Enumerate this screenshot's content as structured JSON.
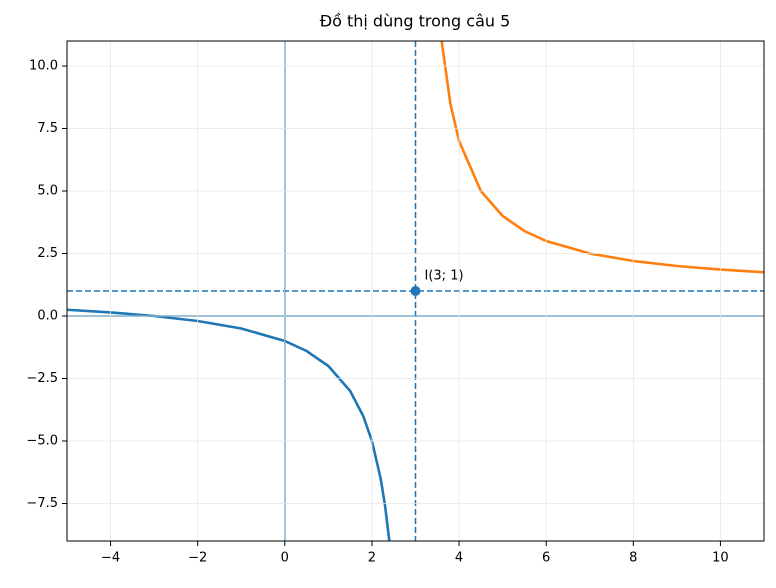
{
  "chart_data": {
    "type": "line",
    "title": "Đồ thị dùng trong câu 5",
    "xlim": [
      -5,
      11
    ],
    "ylim": [
      -9,
      11
    ],
    "xticks": [
      {
        "value": -4,
        "label": "−4"
      },
      {
        "value": -2,
        "label": "−2"
      },
      0,
      2,
      4,
      6,
      8,
      10
    ],
    "yticks": [
      {
        "value": -7.5,
        "label": "−7.5"
      },
      {
        "value": -5,
        "label": "−5.0"
      },
      {
        "value": -2.5,
        "label": "−2.5"
      },
      {
        "value": 0,
        "label": "0.0"
      },
      2.5,
      {
        "value": 5,
        "label": "5.0"
      },
      7.5,
      {
        "value": 10,
        "label": "10.0"
      }
    ],
    "grid": true,
    "series": [
      {
        "color": "#1f77b4",
        "x": [
          -5,
          -4,
          -3,
          -2,
          -1,
          0,
          0.5,
          1,
          1.5,
          1.8,
          2,
          2.2,
          2.3,
          2.4
        ],
        "values": [
          0.25,
          0.1429,
          0,
          -0.2,
          -0.5,
          -1,
          -1.4,
          -2,
          -3,
          -4,
          -5,
          -6.5,
          -7.571,
          -9
        ]
      },
      {
        "color": "#ff7f0e",
        "x": [
          3.6,
          3.8,
          4,
          4.5,
          5,
          5.5,
          6,
          7,
          8,
          9,
          10,
          11
        ],
        "values": [
          11,
          8.5,
          7,
          5,
          4,
          3.4,
          3,
          2.5,
          2.2,
          2,
          1.857,
          1.75
        ]
      }
    ],
    "reference_lines": [
      {
        "axis": "x",
        "value": 0,
        "style": "solid"
      },
      {
        "axis": "y",
        "value": 0,
        "style": "solid"
      },
      {
        "axis": "x",
        "value": 3,
        "style": "dashed"
      },
      {
        "axis": "y",
        "value": 1,
        "style": "dashed"
      }
    ],
    "reference_color": "#1f77b4",
    "points": [
      {
        "x": 3,
        "y": 1,
        "label": "I(3; 1)",
        "color": "#1f77b4"
      }
    ]
  }
}
